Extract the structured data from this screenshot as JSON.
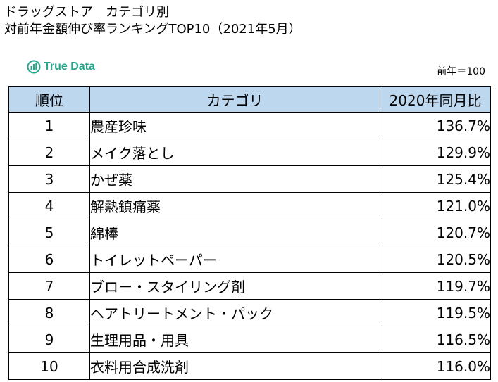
{
  "title": {
    "line1": "ドラッグストア　カテゴリ別",
    "line2": "対前年金額伸び率ランキングTOP10（2021年5月）"
  },
  "logo": {
    "text": "True Data",
    "icon": "bar-chart-logo-icon",
    "color": "#2aa58c"
  },
  "base_note": "前年＝100",
  "table": {
    "header_color": "#bdd7ee",
    "headers": [
      "順位",
      "カテゴリ",
      "2020年同月比"
    ],
    "rows": [
      {
        "rank": "1",
        "category": "農産珍味",
        "value": "136.7%"
      },
      {
        "rank": "2",
        "category": "メイク落とし",
        "value": "129.9%"
      },
      {
        "rank": "3",
        "category": "かぜ薬",
        "value": "125.4%"
      },
      {
        "rank": "4",
        "category": "解熱鎮痛薬",
        "value": "121.0%"
      },
      {
        "rank": "5",
        "category": "綿棒",
        "value": "120.7%"
      },
      {
        "rank": "6",
        "category": "トイレットペーパー",
        "value": "120.5%"
      },
      {
        "rank": "7",
        "category": "ブロー・スタイリング剤",
        "value": "119.7%"
      },
      {
        "rank": "8",
        "category": "ヘアトリートメント・パック",
        "value": "119.5%"
      },
      {
        "rank": "9",
        "category": "生理用品・用具",
        "value": "116.5%"
      },
      {
        "rank": "10",
        "category": "衣料用合成洗剤",
        "value": "116.0%"
      }
    ]
  }
}
